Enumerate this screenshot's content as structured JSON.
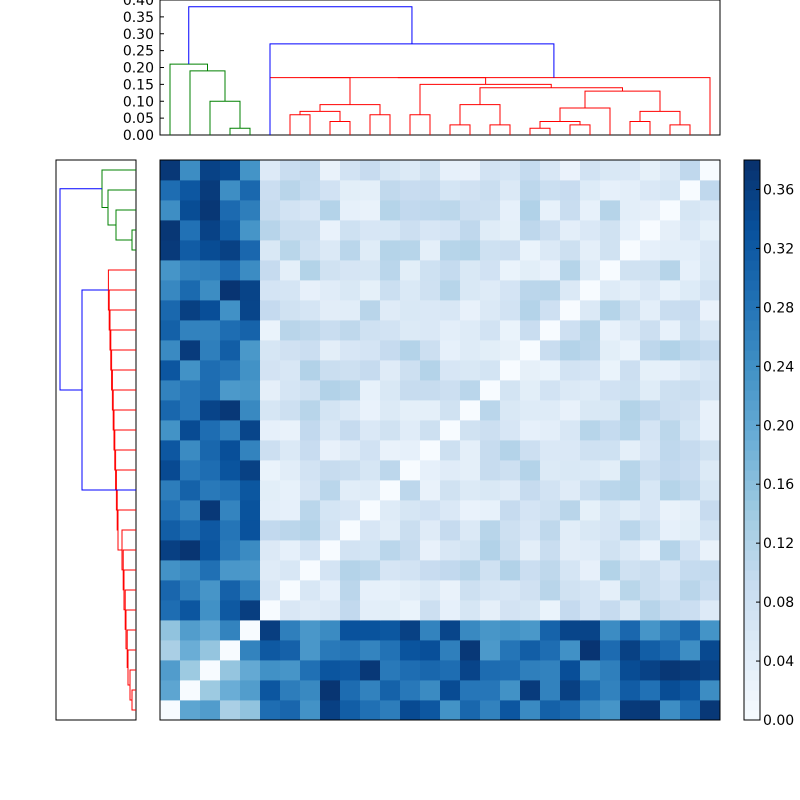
{
  "chart_data": {
    "type": "heatmap",
    "title": "",
    "xlabel": "",
    "ylabel": "",
    "size": 28,
    "colormap": "Blues",
    "colorbar": {
      "range": [
        0,
        0.38
      ],
      "ticks": [
        0.0,
        0.04,
        0.08,
        0.12,
        0.16,
        0.2,
        0.24,
        0.28,
        0.32,
        0.36
      ],
      "tick_labels": [
        "0.00",
        "0.04",
        "0.08",
        "0.12",
        "0.16",
        "0.20",
        "0.24",
        "0.28",
        "0.32",
        "0.36"
      ]
    },
    "top_dendrogram": {
      "ylim": [
        0,
        0.4
      ],
      "ticks": [
        0.0,
        0.05,
        0.1,
        0.15,
        0.2,
        0.25,
        0.3,
        0.35,
        0.4
      ],
      "tick_labels": [
        "0.00",
        "0.05",
        "0.10",
        "0.15",
        "0.20",
        "0.25",
        "0.30",
        "0.35",
        "0.40"
      ],
      "groups": [
        {
          "cluster": "green",
          "color": "#008000",
          "leaves": [
            0,
            4
          ],
          "height": 0.21
        },
        {
          "cluster": "red",
          "color": "#ff0000",
          "leaves": [
            5,
            27
          ],
          "height": 0.17
        }
      ],
      "root": {
        "color": "#0000ff",
        "height": 0.38
      },
      "link_heights": [
        0.38,
        0.27,
        0.21,
        0.19,
        0.17,
        0.15,
        0.14,
        0.13,
        0.1,
        0.09,
        0.08,
        0.07,
        0.06,
        0.04,
        0.03,
        0.02
      ]
    },
    "left_dendrogram": {
      "groups": [
        {
          "cluster": "red",
          "color": "#ff0000",
          "leaves": [
            0,
            22
          ]
        },
        {
          "cluster": "green",
          "color": "#008000",
          "leaves": [
            23,
            27
          ]
        }
      ],
      "root": {
        "color": "#0000ff"
      }
    },
    "matrix_blocks": {
      "block_a": [
        0,
        4
      ],
      "block_b": [
        5,
        27
      ],
      "within_a": 0.26,
      "within_b": 0.08,
      "between": 0.3
    }
  }
}
